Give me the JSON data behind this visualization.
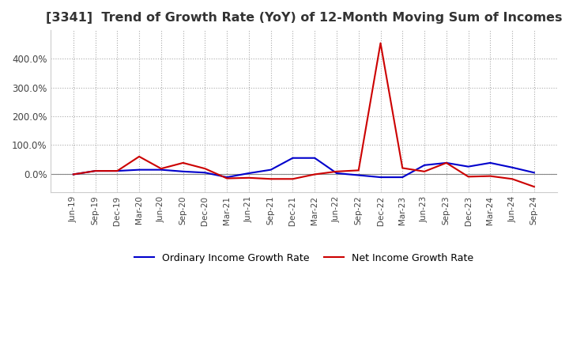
{
  "title": "[3341]  Trend of Growth Rate (YoY) of 12-Month Moving Sum of Incomes",
  "title_fontsize": 11.5,
  "x_labels": [
    "Jun-19",
    "Sep-19",
    "Dec-19",
    "Mar-20",
    "Jun-20",
    "Sep-20",
    "Dec-20",
    "Mar-21",
    "Jun-21",
    "Sep-21",
    "Dec-21",
    "Mar-22",
    "Jun-22",
    "Sep-22",
    "Dec-22",
    "Mar-23",
    "Jun-23",
    "Sep-23",
    "Dec-23",
    "Mar-24",
    "Jun-24",
    "Sep-24"
  ],
  "ordinary_income": [
    -0.02,
    0.1,
    0.1,
    0.14,
    0.14,
    0.08,
    0.04,
    -0.12,
    0.02,
    0.14,
    0.55,
    0.55,
    0.02,
    -0.05,
    -0.12,
    -0.12,
    0.3,
    0.38,
    0.25,
    0.38,
    0.22,
    0.04
  ],
  "net_income": [
    -0.02,
    0.1,
    0.1,
    0.6,
    0.18,
    0.38,
    0.18,
    -0.16,
    -0.14,
    -0.18,
    -0.18,
    -0.02,
    0.08,
    0.12,
    4.55,
    0.2,
    0.08,
    0.38,
    -0.1,
    -0.08,
    -0.18,
    -0.45
  ],
  "ylim_min": -0.65,
  "ylim_max": 5.0,
  "ytick_vals": [
    0.0,
    1.0,
    2.0,
    3.0,
    4.0
  ],
  "ytick_labels": [
    "0.0%",
    "100.0%",
    "200.0%",
    "300.0%",
    "400.0%"
  ],
  "ordinary_color": "#0000cc",
  "net_color": "#cc0000",
  "legend_ordinary": "Ordinary Income Growth Rate",
  "legend_net": "Net Income Growth Rate",
  "bg_color": "#ffffff",
  "grid_color": "#aaaaaa",
  "zero_line_color": "#888888"
}
